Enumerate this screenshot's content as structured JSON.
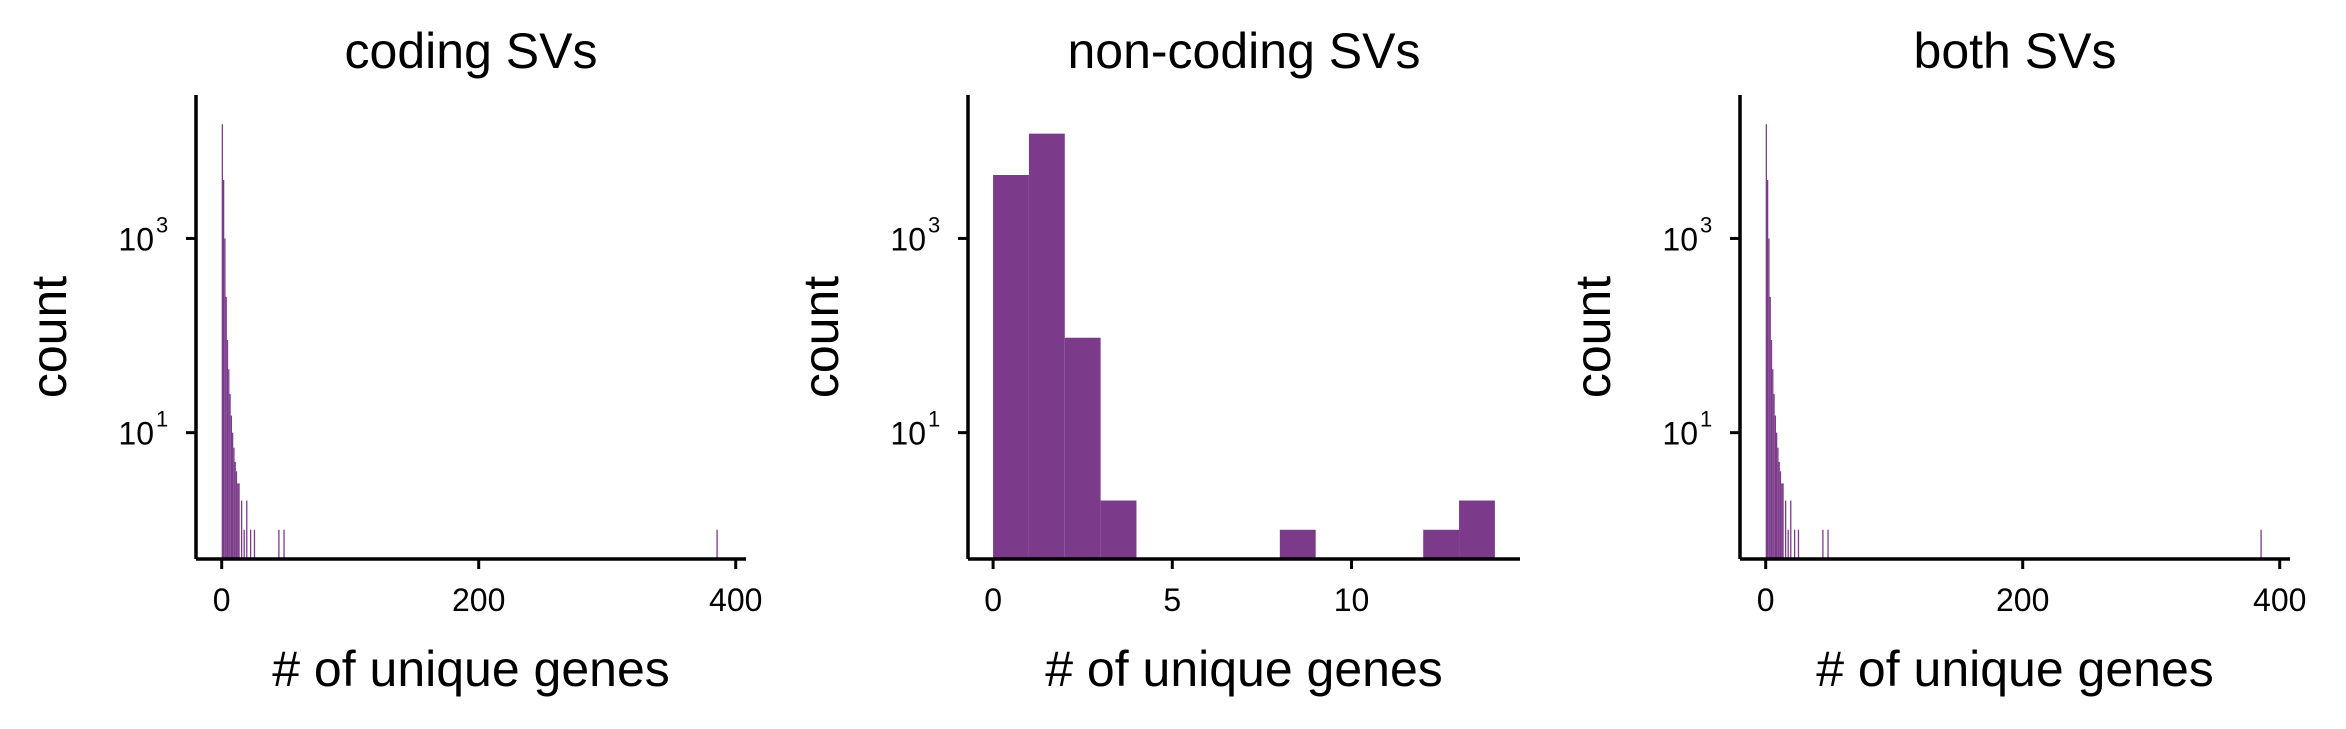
{
  "chart_data": [
    {
      "type": "bar",
      "title": "coding SVs",
      "xlabel": "# of unique genes",
      "ylabel": "count",
      "xticks": [
        0,
        200,
        400
      ],
      "xlim": [
        -20,
        408
      ],
      "ylim": [
        0.5,
        30000
      ],
      "yscale": "log",
      "yticks": [
        {
          "base": "10",
          "exp": "3"
        },
        {
          "base": "10",
          "exp": "1"
        }
      ],
      "bar_color": "#7b3a8a",
      "bins": [
        {
          "x0": 0,
          "x1": 1,
          "count": 15000
        },
        {
          "x0": 1,
          "x1": 2,
          "count": 4000
        },
        {
          "x0": 2,
          "x1": 3,
          "count": 1000
        },
        {
          "x0": 3,
          "x1": 4,
          "count": 250
        },
        {
          "x0": 4,
          "x1": 5,
          "count": 90
        },
        {
          "x0": 5,
          "x1": 6,
          "count": 45
        },
        {
          "x0": 6,
          "x1": 7,
          "count": 25
        },
        {
          "x0": 7,
          "x1": 8,
          "count": 15
        },
        {
          "x0": 8,
          "x1": 9,
          "count": 10
        },
        {
          "x0": 9,
          "x1": 10,
          "count": 7
        },
        {
          "x0": 10,
          "x1": 11,
          "count": 5
        },
        {
          "x0": 11,
          "x1": 12,
          "count": 4
        },
        {
          "x0": 12,
          "x1": 13,
          "count": 3
        },
        {
          "x0": 13,
          "x1": 14,
          "count": 3
        },
        {
          "x0": 15,
          "x1": 16,
          "count": 2
        },
        {
          "x0": 17,
          "x1": 18,
          "count": 1
        },
        {
          "x0": 19,
          "x1": 20,
          "count": 2
        },
        {
          "x0": 22,
          "x1": 23,
          "count": 1
        },
        {
          "x0": 25,
          "x1": 26,
          "count": 1
        },
        {
          "x0": 44,
          "x1": 45,
          "count": 1
        },
        {
          "x0": 48,
          "x1": 49,
          "count": 1
        },
        {
          "x0": 385,
          "x1": 386,
          "count": 1
        }
      ]
    },
    {
      "type": "bar",
      "title": "non-coding SVs",
      "xlabel": "# of unique genes",
      "ylabel": "count",
      "xticks": [
        0,
        5,
        10
      ],
      "xlim": [
        -0.7,
        14.7
      ],
      "ylim": [
        0.5,
        30000
      ],
      "yscale": "log",
      "yticks": [
        {
          "base": "10",
          "exp": "3"
        },
        {
          "base": "10",
          "exp": "1"
        }
      ],
      "bar_color": "#7b3a8a",
      "bins": [
        {
          "x0": 0,
          "x1": 1,
          "count": 4500
        },
        {
          "x0": 1,
          "x1": 2,
          "count": 12000
        },
        {
          "x0": 2,
          "x1": 3,
          "count": 95
        },
        {
          "x0": 3,
          "x1": 4,
          "count": 2
        },
        {
          "x0": 8,
          "x1": 9,
          "count": 1
        },
        {
          "x0": 12,
          "x1": 13,
          "count": 1
        },
        {
          "x0": 13,
          "x1": 14,
          "count": 2
        }
      ]
    },
    {
      "type": "bar",
      "title": "both SVs",
      "xlabel": "# of unique genes",
      "ylabel": "count",
      "xticks": [
        0,
        200,
        400
      ],
      "xlim": [
        -20,
        408
      ],
      "ylim": [
        0.5,
        30000
      ],
      "yscale": "log",
      "yticks": [
        {
          "base": "10",
          "exp": "3"
        },
        {
          "base": "10",
          "exp": "1"
        }
      ],
      "bar_color": "#7b3a8a",
      "bins": [
        {
          "x0": 0,
          "x1": 1,
          "count": 15000
        },
        {
          "x0": 1,
          "x1": 2,
          "count": 4000
        },
        {
          "x0": 2,
          "x1": 3,
          "count": 1000
        },
        {
          "x0": 3,
          "x1": 4,
          "count": 250
        },
        {
          "x0": 4,
          "x1": 5,
          "count": 90
        },
        {
          "x0": 5,
          "x1": 6,
          "count": 45
        },
        {
          "x0": 6,
          "x1": 7,
          "count": 25
        },
        {
          "x0": 7,
          "x1": 8,
          "count": 15
        },
        {
          "x0": 8,
          "x1": 9,
          "count": 10
        },
        {
          "x0": 9,
          "x1": 10,
          "count": 7
        },
        {
          "x0": 10,
          "x1": 11,
          "count": 5
        },
        {
          "x0": 11,
          "x1": 12,
          "count": 4
        },
        {
          "x0": 12,
          "x1": 13,
          "count": 3
        },
        {
          "x0": 13,
          "x1": 14,
          "count": 3
        },
        {
          "x0": 15,
          "x1": 16,
          "count": 2
        },
        {
          "x0": 17,
          "x1": 18,
          "count": 1
        },
        {
          "x0": 19,
          "x1": 20,
          "count": 2
        },
        {
          "x0": 22,
          "x1": 23,
          "count": 1
        },
        {
          "x0": 25,
          "x1": 26,
          "count": 1
        },
        {
          "x0": 44,
          "x1": 45,
          "count": 1
        },
        {
          "x0": 48,
          "x1": 49,
          "count": 1
        },
        {
          "x0": 385,
          "x1": 386,
          "count": 1
        }
      ]
    }
  ]
}
